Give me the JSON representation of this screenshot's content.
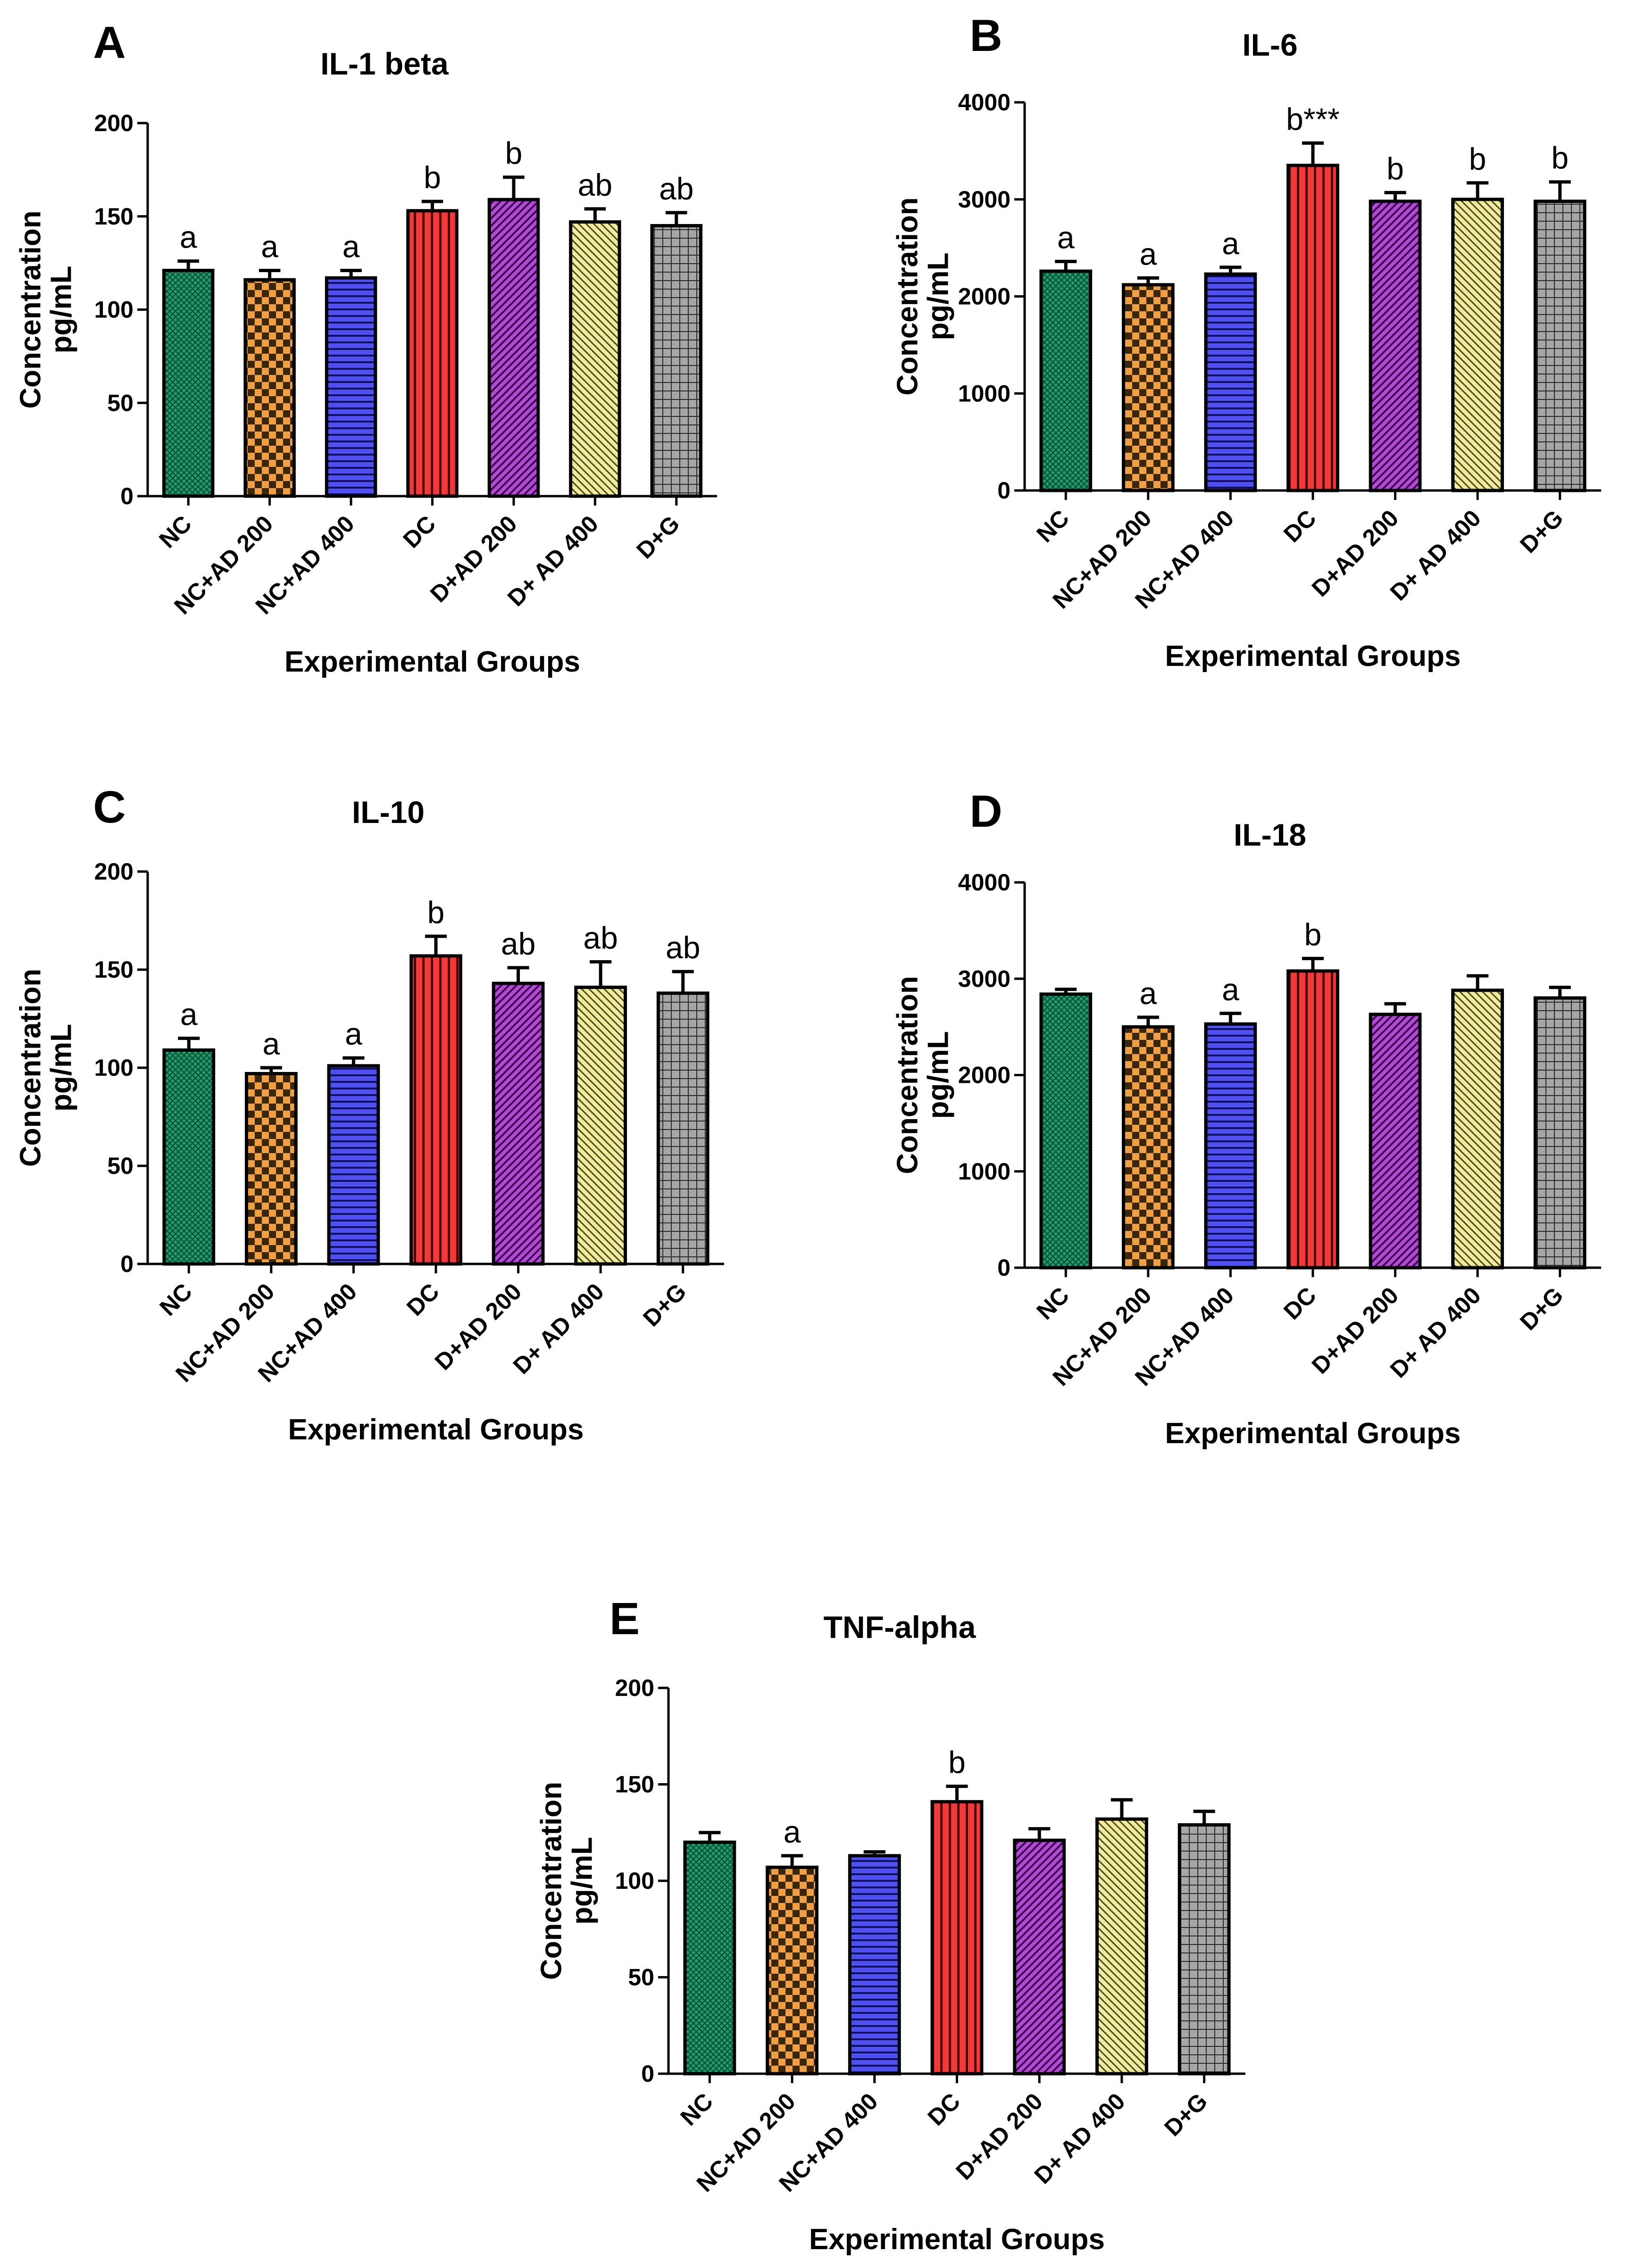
{
  "figure": {
    "categories": [
      "NC",
      "NC+AD 200",
      "NC+AD 400",
      "DC",
      "D+AD 200",
      "D+ AD 400",
      "D+G"
    ],
    "bar_colors": [
      "#1a9e6e",
      "#f0a040",
      "#5050f0",
      "#f03a3a",
      "#b448d8",
      "#f0ec9c",
      "#a6a6a6"
    ],
    "xlabel": "Experimental Groups",
    "ylabel_line1": "Concentration",
    "ylabel_line2": "pg/mL"
  },
  "chart_data": [
    {
      "panel": "A",
      "type": "bar",
      "title": "IL-1 beta",
      "xlabel": "Experimental Groups",
      "ylabel": "Concentration pg/mL",
      "ylim": [
        0,
        200
      ],
      "yticks": [
        "0",
        "50",
        "100",
        "150",
        "200"
      ],
      "values": [
        121,
        116,
        117,
        153,
        159,
        147,
        145
      ],
      "errors": [
        5,
        5,
        4,
        5,
        12,
        7,
        7
      ],
      "annotations": [
        "a",
        "a",
        "a",
        "b",
        "b",
        "ab",
        "ab"
      ]
    },
    {
      "panel": "B",
      "type": "bar",
      "title": "IL-6",
      "xlabel": "Experimental Groups",
      "ylabel": "Concentration pg/mL",
      "ylim": [
        0,
        4000
      ],
      "yticks": [
        "0",
        "1000",
        "2000",
        "3000",
        "4000"
      ],
      "values": [
        2260,
        2120,
        2230,
        3350,
        2980,
        3000,
        2980
      ],
      "errors": [
        100,
        70,
        70,
        230,
        90,
        170,
        200
      ],
      "annotations": [
        "a",
        "a",
        "a",
        "b***",
        "b",
        "b",
        "b"
      ]
    },
    {
      "panel": "C",
      "type": "bar",
      "title": "IL-10",
      "xlabel": "Experimental Groups",
      "ylabel": "Concentration pg/mL",
      "ylim": [
        0,
        200
      ],
      "yticks": [
        "0",
        "50",
        "100",
        "150",
        "200"
      ],
      "values": [
        109,
        97,
        101,
        157,
        143,
        141,
        138
      ],
      "errors": [
        6,
        3,
        4,
        10,
        8,
        13,
        11
      ],
      "annotations": [
        "a",
        "a",
        "a",
        "b",
        "ab",
        "ab",
        "ab"
      ]
    },
    {
      "panel": "D",
      "type": "bar",
      "title": "IL-18",
      "xlabel": "Experimental Groups",
      "ylabel": "Concentration pg/mL",
      "ylim": [
        0,
        4000
      ],
      "yticks": [
        "0",
        "1000",
        "2000",
        "3000",
        "4000"
      ],
      "values": [
        2840,
        2500,
        2530,
        3080,
        2630,
        2880,
        2800
      ],
      "errors": [
        50,
        100,
        110,
        130,
        110,
        150,
        110
      ],
      "annotations": [
        "",
        "a",
        "a",
        "b",
        "",
        "",
        ""
      ]
    },
    {
      "panel": "E",
      "type": "bar",
      "title": "TNF-alpha",
      "xlabel": "Experimental Groups",
      "ylabel": "Concentration pg/mL",
      "ylim": [
        0,
        200
      ],
      "yticks": [
        "0",
        "50",
        "100",
        "150",
        "200"
      ],
      "values": [
        120,
        107,
        113,
        141,
        121,
        132,
        129
      ],
      "errors": [
        5,
        6,
        2,
        8,
        6,
        10,
        7
      ],
      "annotations": [
        "",
        "a",
        "",
        "b",
        "",
        "",
        ""
      ]
    }
  ]
}
